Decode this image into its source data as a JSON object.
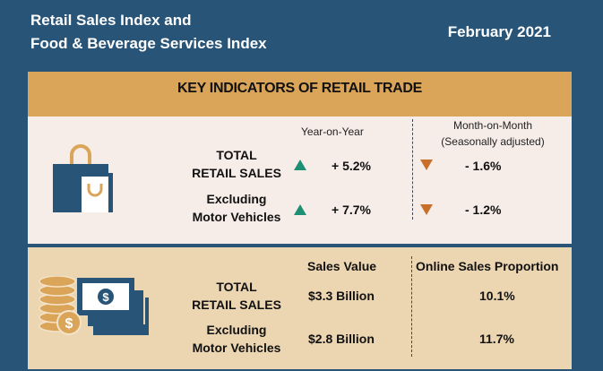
{
  "header": {
    "title_line1": "Retail Sales Index and",
    "title_line2": "Food & Beverage Services Index",
    "date": "February 2021"
  },
  "banner": "KEY INDICATORS OF RETAIL TRADE",
  "growth": {
    "yoy_header": "Year-on-Year",
    "mom_header_line1": "Month-on-Month",
    "mom_header_line2": "(Seasonally adjusted)",
    "rows": [
      {
        "label1": "TOTAL",
        "label2": "RETAIL SALES",
        "yoy": "+ 5.2%",
        "yoy_dir": "up",
        "mom": "- 1.6%",
        "mom_dir": "down"
      },
      {
        "label1": "Excluding",
        "label2": "Motor Vehicles",
        "yoy": "+ 7.7%",
        "yoy_dir": "up",
        "mom": "- 1.2%",
        "mom_dir": "down"
      }
    ]
  },
  "sales": {
    "value_header": "Sales Value",
    "online_header": "Online Sales Proportion",
    "rows": [
      {
        "label1": "TOTAL",
        "label2": "RETAIL SALES",
        "value": "$3.3 Billion",
        "online": "10.1%"
      },
      {
        "label1": "Excluding",
        "label2": "Motor Vehicles",
        "value": "$2.8 Billion",
        "online": "11.7%"
      }
    ]
  },
  "colors": {
    "background": "#285478",
    "banner": "#daa459",
    "up": "#1d8f73",
    "down": "#c8702a"
  }
}
